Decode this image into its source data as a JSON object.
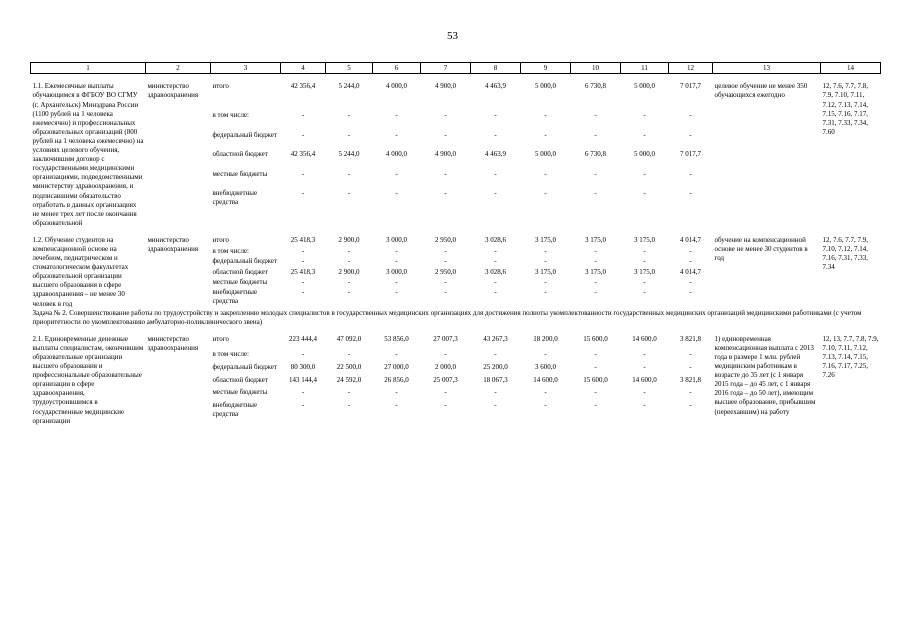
{
  "page": {
    "number": "53"
  },
  "table": {
    "column_numbers": [
      "1",
      "2",
      "3",
      "4",
      "5",
      "6",
      "7",
      "8",
      "9",
      "10",
      "11",
      "12",
      "13",
      "14"
    ],
    "rows": [
      {
        "type": "item",
        "activity": "1.1. Ежемесячные выплаты обучающимся в ФГБОУ ВО СГМУ (г. Архангельск) Минздрава России (1100 рублей на 1 человека ежемесячно) и профессиональных образовательных организаций (800 рублей на 1 человека ежемесячно) на условиях целевого обучения, заключившим договор с государственными медицинскими организациями, подведомственными министерству здравоохранения, и подписавшими обязательство отработать в данных организациях не менее трех лет после окончания образовательной",
        "executor": "министерство здравоохранения",
        "budget_lines": [
          {
            "label": "итого",
            "values": [
              "42 356,4",
              "5 244,0",
              "4 000,0",
              "4 900,0",
              "4 463,9",
              "5 000,0",
              "6 730,8",
              "5 000,0",
              "7 017,7"
            ]
          },
          {
            "label": "в том числе:",
            "values": [
              "-",
              "-",
              "-",
              "-",
              "-",
              "-",
              "-",
              "-",
              "-"
            ]
          },
          {
            "label": "федеральный бюджет",
            "values": [
              "-",
              "-",
              "-",
              "-",
              "-",
              "-",
              "-",
              "-",
              "-"
            ]
          },
          {
            "label": "областной бюджет",
            "values": [
              "42 356,4",
              "5 244,0",
              "4 000,0",
              "4 900,0",
              "4 463,9",
              "5 000,0",
              "6 730,8",
              "5 000,0",
              "7 017,7"
            ]
          },
          {
            "label": "местные бюджеты",
            "values": [
              "-",
              "-",
              "-",
              "-",
              "-",
              "-",
              "-",
              "-",
              "-"
            ]
          },
          {
            "label": "внебюджетные средства",
            "values": [
              "-",
              "-",
              "-",
              "-",
              "-",
              "-",
              "-",
              "-",
              "-"
            ]
          }
        ],
        "result": "целевое обучение не менее 350 обучающихся ежегодно",
        "indicators": "12, 7.6, 7.7, 7.8, 7.9, 7.10, 7.11, 7.12, 7.13, 7.14, 7.15, 7.16, 7.17, 7.31, 7.33, 7.34, 7.60"
      },
      {
        "type": "item",
        "activity": "1.2. Обучение студентов на компенсационной основе на лечебном, педиатрическом и стоматологическом факультетах образовательной организации высшего образования в сфере здравоохранения – не менее 30 человек в год",
        "executor": "министерство здравоохранения",
        "budget_lines": [
          {
            "label": "итого",
            "values": [
              "25 418,3",
              "2 900,0",
              "3 000,0",
              "2 950,0",
              "3 028,6",
              "3 175,0",
              "3 175,0",
              "3 175,0",
              "4 014,7"
            ]
          },
          {
            "label": "в том числе:",
            "values": [
              "-",
              "-",
              "-",
              "-",
              "-",
              "-",
              "-",
              "-",
              "-"
            ]
          },
          {
            "label": "федеральный бюджет",
            "values": [
              "-",
              "-",
              "-",
              "-",
              "-",
              "-",
              "-",
              "-",
              "-"
            ]
          },
          {
            "label": "областной бюджет",
            "values": [
              "25 418,3",
              "2 900,0",
              "3 000,0",
              "2 950,0",
              "3 028,6",
              "3 175,0",
              "3 175,0",
              "3 175,0",
              "4 014,7"
            ]
          },
          {
            "label": "местные бюджеты",
            "values": [
              "-",
              "-",
              "-",
              "-",
              "-",
              "-",
              "-",
              "-",
              "-"
            ]
          },
          {
            "label": "внебюджетные средства",
            "values": [
              "-",
              "-",
              "-",
              "-",
              "-",
              "-",
              "-",
              "-",
              "-"
            ]
          }
        ],
        "result": "обучение на компенсационной основе не менее 30 студентов в год",
        "indicators": "12, 7.6, 7.7, 7.9, 7.10, 7.12, 7.14, 7.16, 7.31, 7.33, 7.34"
      },
      {
        "type": "task",
        "text": "Задача № 2. Совершенствование работы по трудоустройству и закреплению молодых специалистов в государственных медицинских организациях для достижения полноты укомплектованности государственных медицинских организаций медицинскими работниками (с учетом приоритетности по укомплектованию амбулаторно-поликлинического звена)"
      },
      {
        "type": "item",
        "activity": "2.1. Единовременные денежные выплаты специалистам, окончившим образовательные организации высшего образования и профессиональные образовательные организации в сфере здравоохранения, трудоустроившимся в государственные медицинские организации",
        "executor": "министерство здравоохранения",
        "budget_lines": [
          {
            "label": "итого",
            "values": [
              "223 444,4",
              "47 092,0",
              "53 856,0",
              "27 007,3",
              "43 267,3",
              "18 200,0",
              "15 600,0",
              "14 600,0",
              "3 821,8"
            ]
          },
          {
            "label": "в том числе:",
            "values": [
              "-",
              "-",
              "-",
              "-",
              "-",
              "-",
              "-",
              "-",
              "-"
            ]
          },
          {
            "label": "федеральный бюджет",
            "values": [
              "80 300,0",
              "22 500,0",
              "27 000,0",
              "2 000,0",
              "25 200,0",
              "3 600,0",
              "-",
              "-",
              "-"
            ]
          },
          {
            "label": "областной бюджет",
            "values": [
              "143 144,4",
              "24 592,0",
              "26 856,0",
              "25 007,3",
              "18 067,3",
              "14 600,0",
              "15 600,0",
              "14 600,0",
              "3 821,8"
            ]
          },
          {
            "label": "местные бюджеты",
            "values": [
              "-",
              "-",
              "-",
              "-",
              "-",
              "-",
              "-",
              "-",
              "-"
            ]
          },
          {
            "label": "внебюджетные средства",
            "values": [
              "-",
              "-",
              "-",
              "-",
              "-",
              "-",
              "-",
              "-",
              "-"
            ]
          }
        ],
        "result": "1) единовременная компенсационная выплата с 2013 года в размере 1 млн. рублей медицинским работникам в возрасте до 35 лет (с 1 января 2015 года – до 45 лет, с 1 января 2016 года – до 50 лет), имеющим высшее образование, прибывшим (переехавшим) на работу",
        "indicators": "12, 13, 7.7, 7.8, 7.9, 7.10, 7.11, 7.12, 7.13, 7.14, 7.15, 7.16, 7.17, 7.25, 7.26"
      }
    ]
  }
}
